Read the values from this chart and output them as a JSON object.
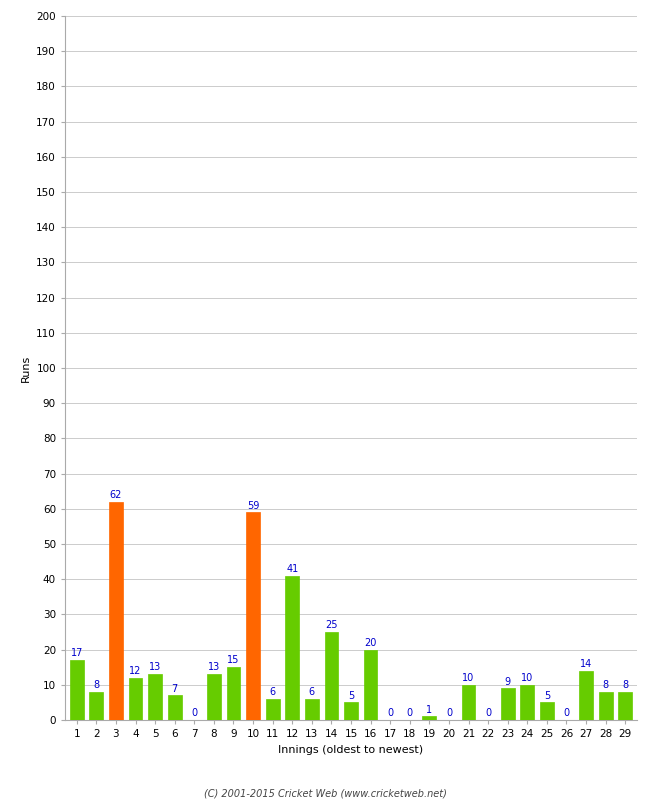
{
  "innings": [
    1,
    2,
    3,
    4,
    5,
    6,
    7,
    8,
    9,
    10,
    11,
    12,
    13,
    14,
    15,
    16,
    17,
    18,
    19,
    20,
    21,
    22,
    23,
    24,
    25,
    26,
    27,
    28,
    29
  ],
  "values": [
    17,
    8,
    62,
    12,
    13,
    7,
    0,
    13,
    15,
    59,
    6,
    41,
    6,
    25,
    5,
    20,
    0,
    0,
    1,
    0,
    10,
    0,
    9,
    10,
    5,
    0,
    14,
    8,
    8
  ],
  "colors": [
    "#66cc00",
    "#66cc00",
    "#ff6600",
    "#66cc00",
    "#66cc00",
    "#66cc00",
    "#66cc00",
    "#66cc00",
    "#66cc00",
    "#ff6600",
    "#66cc00",
    "#66cc00",
    "#66cc00",
    "#66cc00",
    "#66cc00",
    "#66cc00",
    "#66cc00",
    "#66cc00",
    "#66cc00",
    "#66cc00",
    "#66cc00",
    "#66cc00",
    "#66cc00",
    "#66cc00",
    "#66cc00",
    "#66cc00",
    "#66cc00",
    "#66cc00",
    "#66cc00"
  ],
  "ylabel": "Runs",
  "xlabel": "Innings (oldest to newest)",
  "ylim": [
    0,
    200
  ],
  "yticks": [
    0,
    10,
    20,
    30,
    40,
    50,
    60,
    70,
    80,
    90,
    100,
    110,
    120,
    130,
    140,
    150,
    160,
    170,
    180,
    190,
    200
  ],
  "label_color": "#0000cc",
  "label_fontsize": 7,
  "tick_fontsize": 7.5,
  "copyright": "(C) 2001-2015 Cricket Web (www.cricketweb.net)",
  "background_color": "#ffffff",
  "grid_color": "#cccccc",
  "bar_width": 0.7
}
